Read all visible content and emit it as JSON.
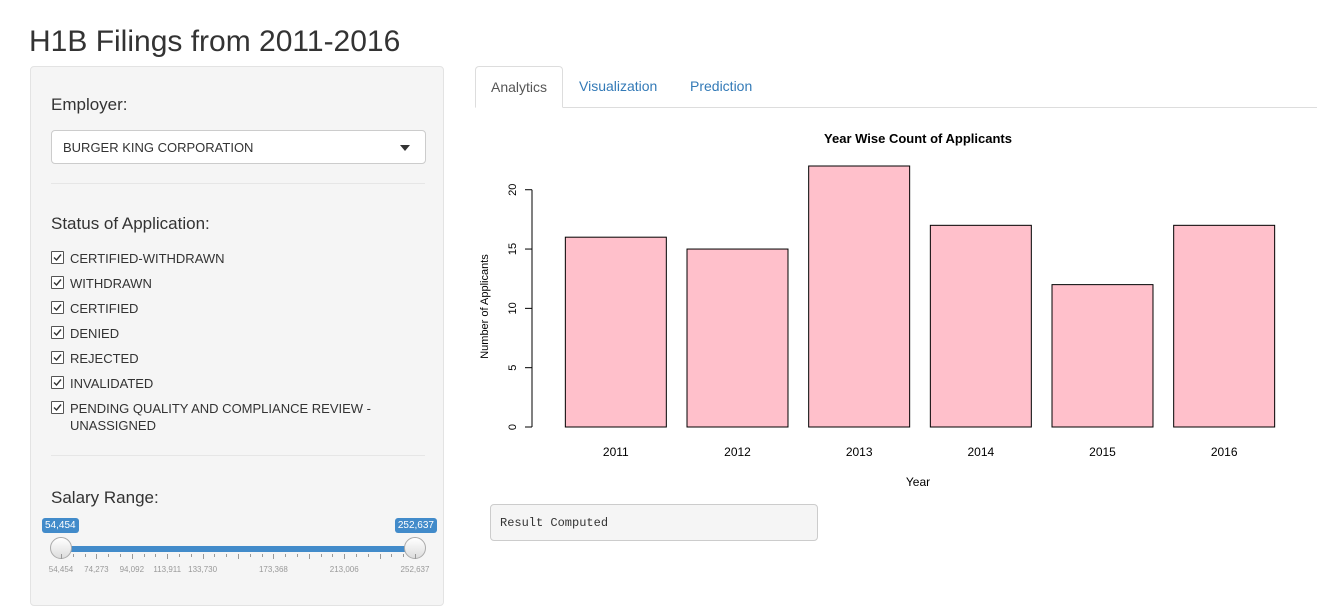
{
  "app": {
    "title": "H1B Filings from 2011-2016"
  },
  "sidebar": {
    "employer": {
      "label": "Employer:",
      "selected": "BURGER KING CORPORATION"
    },
    "status": {
      "label": "Status of Application:",
      "options": [
        {
          "text": "CERTIFIED-WITHDRAWN",
          "checked": true
        },
        {
          "text": "WITHDRAWN",
          "checked": true
        },
        {
          "text": "CERTIFIED",
          "checked": true
        },
        {
          "text": "DENIED",
          "checked": true
        },
        {
          "text": "REJECTED",
          "checked": true
        },
        {
          "text": "INVALIDATED",
          "checked": true
        },
        {
          "text": "PENDING QUALITY AND COMPLIANCE REVIEW -",
          "text2": "UNASSIGNED",
          "checked": true
        }
      ]
    },
    "salary": {
      "label": "Salary Range:",
      "min_value": "54,454",
      "max_value": "252,637",
      "ticks": [
        "54,454",
        "74,273",
        "94,092",
        "113,911",
        "133,730",
        "173,368",
        "213,006",
        "252,637"
      ]
    }
  },
  "tabs": {
    "items": [
      "Analytics",
      "Visualization",
      "Prediction"
    ],
    "active": "Analytics"
  },
  "chart_data": {
    "type": "bar",
    "title": "Year Wise Count of Applicants",
    "xlabel": "Year",
    "ylabel": "Number of Applicants",
    "categories": [
      "2011",
      "2012",
      "2013",
      "2014",
      "2015",
      "2016"
    ],
    "values": [
      16,
      15,
      22,
      17,
      12,
      17
    ],
    "ylim": [
      0,
      22
    ],
    "yticks": [
      "0",
      "5",
      "10",
      "15",
      "20"
    ],
    "bar_color": "#ffc0cb",
    "grid": false
  },
  "result": {
    "text": "Result Computed"
  },
  "colors": {
    "accent": "#428bca",
    "link": "#337ab7",
    "bar": "#ffc0cb"
  }
}
